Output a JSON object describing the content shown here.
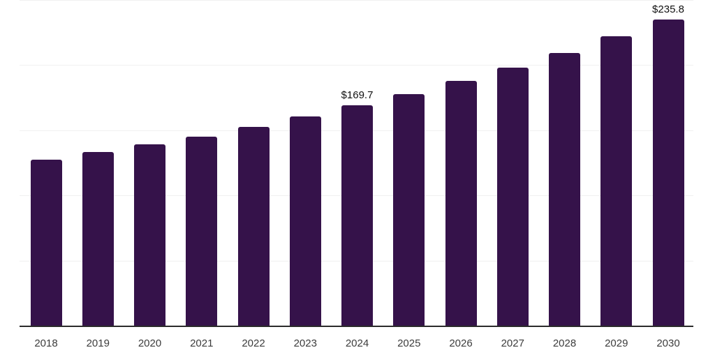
{
  "chart_data": {
    "type": "bar",
    "title": "",
    "xlabel": "",
    "ylabel": "",
    "categories": [
      "2018",
      "2019",
      "2020",
      "2021",
      "2022",
      "2023",
      "2024",
      "2025",
      "2026",
      "2027",
      "2028",
      "2029",
      "2030"
    ],
    "values": [
      128.0,
      133.9,
      139.8,
      145.7,
      153.2,
      161.2,
      169.7,
      178.2,
      188.3,
      198.7,
      210.0,
      222.8,
      235.8
    ],
    "data_labels": [
      "",
      "",
      "",
      "",
      "",
      "",
      "$169.7",
      "",
      "",
      "",
      "",
      "",
      "$235.8"
    ],
    "ylim": [
      0,
      250
    ],
    "y_gridlines": [
      50,
      100,
      150,
      200,
      250
    ],
    "grid": "horizontal",
    "legend_position": "none",
    "y_axis_labels_visible": false,
    "colors": {
      "bar": "#35124a",
      "gridline": "#f0f0f0",
      "axis_line": "#2b2b2b",
      "tick_label": "#3c3c3c",
      "data_label": "#111111",
      "background": "#ffffff"
    }
  }
}
